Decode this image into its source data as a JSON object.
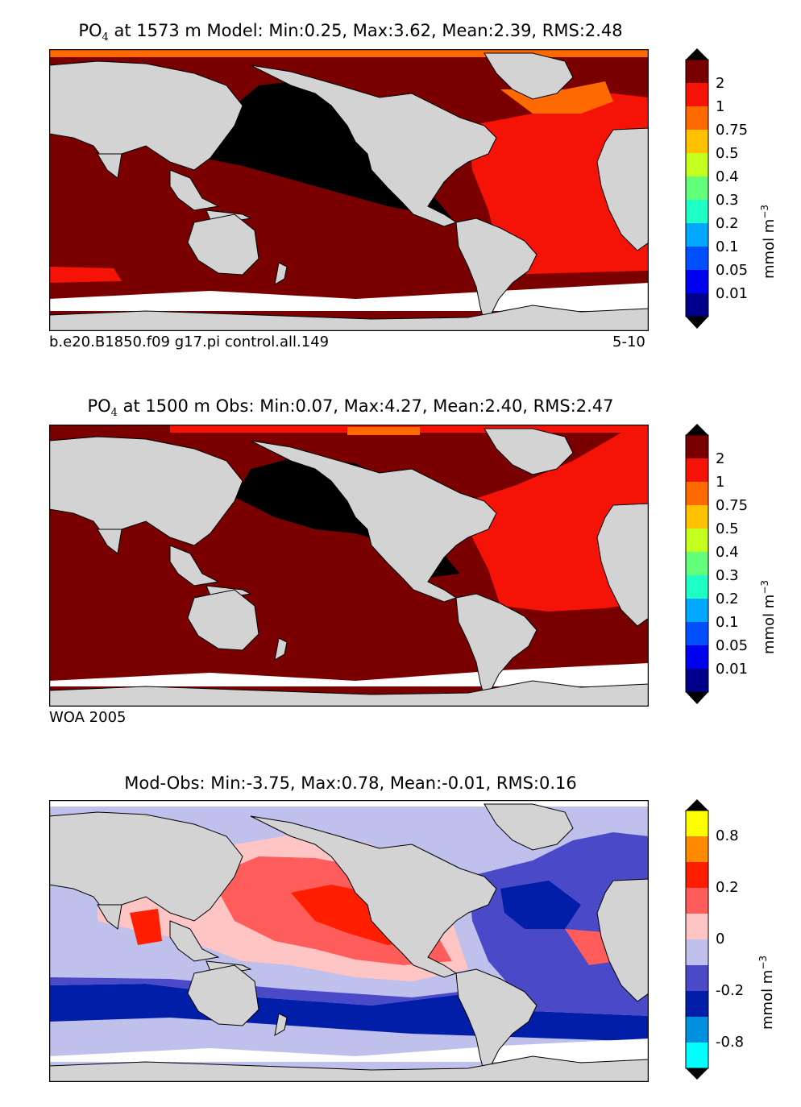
{
  "colors": {
    "land": "#d3d3d3",
    "ocean_missing": "#ffffff",
    "c_black": "#000000",
    "c_maroon": "#7a0000",
    "c_red": "#f51206",
    "c_orange": "#ff6a00",
    "c_amber": "#ffc200",
    "c_ygreen": "#c5ff1e",
    "c_lgreen": "#64ff7a",
    "c_aqua": "#1effc5",
    "c_sky": "#00a8ff",
    "c_blue": "#0050ff",
    "c_pureblue": "#0000f0",
    "c_navy": "#00008a",
    "d_cyan": "#00ffff",
    "d_lblue": "#0090e0",
    "d_dblue": "#001ea8",
    "d_mblue": "#4a4ac8",
    "d_pblue": "#c0c0ec",
    "d_pink": "#ffc4c4",
    "d_salmon": "#ff5c5c",
    "d_red": "#ff1e00",
    "d_orange": "#ff8a00",
    "d_yellow": "#ffff00"
  },
  "chart_data": [
    {
      "type": "heatmap",
      "title": "PO",
      "title_sub": "4",
      "title_rest": " at 1573 m Model: Min:0.25, Max:3.62, Mean:2.39, RMS:2.48",
      "footer_left": "b.e20.B1850.f09 g17.pi control.all.149",
      "footer_right": "5-10",
      "colorbar_ticks": [
        "2",
        "1",
        "0.75",
        "0.5",
        "0.4",
        "0.3",
        "0.2",
        "0.1",
        "0.05",
        "0.01"
      ],
      "colorbar_unit": "mmol m",
      "colorbar_unit_sup": "−3",
      "stats": {
        "min": 0.25,
        "max": 3.62,
        "mean": 2.39,
        "rms": 2.48
      },
      "depth_m": 1573
    },
    {
      "type": "heatmap",
      "title": "PO",
      "title_sub": "4",
      "title_rest": " at 1500 m Obs: Min:0.07, Max:4.27, Mean:2.40, RMS:2.47",
      "footer_left": "WOA 2005",
      "colorbar_ticks": [
        "2",
        "1",
        "0.75",
        "0.5",
        "0.4",
        "0.3",
        "0.2",
        "0.1",
        "0.05",
        "0.01"
      ],
      "colorbar_unit": "mmol m",
      "colorbar_unit_sup": "−3",
      "stats": {
        "min": 0.07,
        "max": 4.27,
        "mean": 2.4,
        "rms": 2.47
      },
      "depth_m": 1500
    },
    {
      "type": "heatmap",
      "title": "Mod-Obs: Min:-3.75, Max:0.78, Mean:-0.01, RMS:0.16",
      "colorbar_ticks": [
        "0.8",
        "0.2",
        "0",
        "-0.2",
        "-0.8"
      ],
      "colorbar_unit": "mmol m",
      "colorbar_unit_sup": "−3",
      "stats": {
        "min": -3.75,
        "max": 0.78,
        "mean": -0.01,
        "rms": 0.16
      }
    }
  ]
}
